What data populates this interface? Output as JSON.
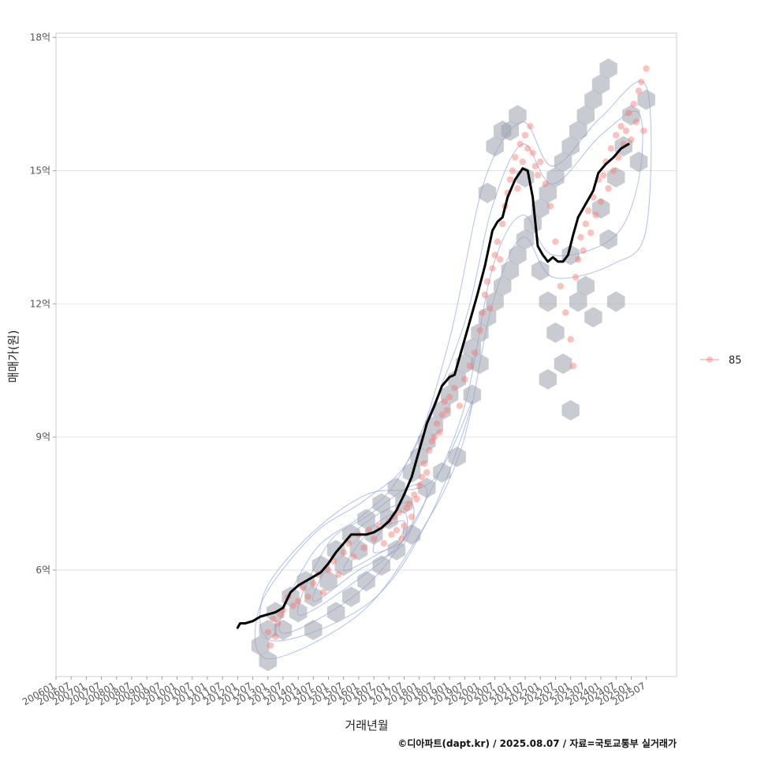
{
  "chart_data": {
    "type": "scatter",
    "xlabel": "거래년월",
    "ylabel": "매매가(원)",
    "y_unit": "억",
    "ylim": [
      3.6,
      18.1
    ],
    "yticks": [
      6,
      9,
      12,
      15,
      18
    ],
    "ytick_labels": [
      "6억",
      "9억",
      "12억",
      "15억",
      "18억"
    ],
    "x_range": [
      "2006-01",
      "2026-07"
    ],
    "x_tick_labels": [
      "200601",
      "200607",
      "200701",
      "200707",
      "200801",
      "200807",
      "200901",
      "200907",
      "201001",
      "201007",
      "201101",
      "201107",
      "201201",
      "201207",
      "201301",
      "201307",
      "201401",
      "201407",
      "201501",
      "201507",
      "201601",
      "201607",
      "201701",
      "201707",
      "201801",
      "201807",
      "201901",
      "201907",
      "202001",
      "202007",
      "202101",
      "202107",
      "202201",
      "202207",
      "202301",
      "202307",
      "202401",
      "202407",
      "202501",
      "202507"
    ],
    "grid": "horizontal",
    "legend_position": "right",
    "legend": [
      {
        "label": "85",
        "color": "#F8766D"
      }
    ],
    "series": [
      {
        "name": "85",
        "kind": "scatter",
        "color": "#F8766D",
        "points": [
          [
            "2013-01",
            4.6
          ],
          [
            "2013-02",
            4.3
          ],
          [
            "2013-03",
            4.9
          ],
          [
            "2013-04",
            4.5
          ],
          [
            "2013-05",
            4.8
          ],
          [
            "2013-06",
            5.0
          ],
          [
            "2013-07",
            5.1
          ],
          [
            "2013-09",
            5.4
          ],
          [
            "2013-11",
            5.2
          ],
          [
            "2014-01",
            5.3
          ],
          [
            "2014-03",
            5.6
          ],
          [
            "2014-05",
            5.4
          ],
          [
            "2014-07",
            5.7
          ],
          [
            "2014-09",
            5.9
          ],
          [
            "2014-11",
            5.5
          ],
          [
            "2015-01",
            6.0
          ],
          [
            "2015-03",
            6.2
          ],
          [
            "2015-05",
            5.9
          ],
          [
            "2015-07",
            6.4
          ],
          [
            "2015-09",
            6.6
          ],
          [
            "2015-11",
            6.3
          ],
          [
            "2016-01",
            6.8
          ],
          [
            "2016-03",
            6.5
          ],
          [
            "2016-05",
            6.9
          ],
          [
            "2016-07",
            6.7
          ],
          [
            "2016-09",
            7.0
          ],
          [
            "2016-11",
            6.6
          ],
          [
            "2017-01",
            7.1
          ],
          [
            "2017-02",
            6.8
          ],
          [
            "2017-03",
            7.2
          ],
          [
            "2017-04",
            6.9
          ],
          [
            "2017-05",
            7.3
          ],
          [
            "2017-06",
            6.7
          ],
          [
            "2017-07",
            7.0
          ],
          [
            "2017-08",
            7.4
          ],
          [
            "2017-09",
            7.5
          ],
          [
            "2017-10",
            7.2
          ],
          [
            "2017-11",
            7.7
          ],
          [
            "2017-12",
            7.6
          ],
          [
            "2018-01",
            7.9
          ],
          [
            "2018-02",
            8.1
          ],
          [
            "2018-03",
            8.4
          ],
          [
            "2018-04",
            8.2
          ],
          [
            "2018-05",
            8.7
          ],
          [
            "2018-06",
            8.9
          ],
          [
            "2018-07",
            9.0
          ],
          [
            "2018-08",
            9.3
          ],
          [
            "2018-09",
            9.1
          ],
          [
            "2018-10",
            9.5
          ],
          [
            "2018-11",
            9.8
          ],
          [
            "2018-12",
            9.6
          ],
          [
            "2019-01",
            9.9
          ],
          [
            "2019-03",
            10.1
          ],
          [
            "2019-05",
            9.7
          ],
          [
            "2019-07",
            10.3
          ],
          [
            "2019-09",
            10.6
          ],
          [
            "2019-11",
            10.9
          ],
          [
            "2020-01",
            11.4
          ],
          [
            "2020-02",
            11.8
          ],
          [
            "2020-03",
            12.2
          ],
          [
            "2020-04",
            12.5
          ],
          [
            "2020-05",
            11.9
          ],
          [
            "2020-06",
            12.8
          ],
          [
            "2020-07",
            13.1
          ],
          [
            "2020-08",
            13.4
          ],
          [
            "2020-09",
            13.0
          ],
          [
            "2020-10",
            13.8
          ],
          [
            "2020-11",
            14.2
          ],
          [
            "2020-12",
            14.5
          ],
          [
            "2021-01",
            14.8
          ],
          [
            "2021-02",
            15.0
          ],
          [
            "2021-03",
            15.3
          ],
          [
            "2021-04",
            14.6
          ],
          [
            "2021-05",
            15.6
          ],
          [
            "2021-06",
            15.2
          ],
          [
            "2021-07",
            15.8
          ],
          [
            "2021-08",
            15.5
          ],
          [
            "2021-09",
            16.0
          ],
          [
            "2021-10",
            15.4
          ],
          [
            "2021-11",
            15.1
          ],
          [
            "2021-12",
            14.9
          ],
          [
            "2022-01",
            15.2
          ],
          [
            "2022-03",
            14.7
          ],
          [
            "2022-05",
            14.2
          ],
          [
            "2022-07",
            13.4
          ],
          [
            "2022-09",
            12.4
          ],
          [
            "2022-11",
            11.8
          ],
          [
            "2023-01",
            11.2
          ],
          [
            "2023-02",
            10.6
          ],
          [
            "2023-03",
            12.6
          ],
          [
            "2023-04",
            13.0
          ],
          [
            "2023-05",
            13.5
          ],
          [
            "2023-06",
            13.2
          ],
          [
            "2023-07",
            13.8
          ],
          [
            "2023-08",
            14.1
          ],
          [
            "2023-09",
            13.6
          ],
          [
            "2023-10",
            14.4
          ],
          [
            "2023-11",
            14.0
          ],
          [
            "2023-12",
            14.8
          ],
          [
            "2024-01",
            14.3
          ],
          [
            "2024-02",
            14.9
          ],
          [
            "2024-03",
            15.2
          ],
          [
            "2024-04",
            14.6
          ],
          [
            "2024-05",
            15.5
          ],
          [
            "2024-06",
            15.0
          ],
          [
            "2024-07",
            15.8
          ],
          [
            "2024-08",
            15.3
          ],
          [
            "2024-09",
            16.0
          ],
          [
            "2024-10",
            15.6
          ],
          [
            "2024-11",
            15.9
          ],
          [
            "2024-12",
            16.3
          ],
          [
            "2025-01",
            15.7
          ],
          [
            "2025-02",
            16.5
          ],
          [
            "2025-03",
            16.1
          ],
          [
            "2025-04",
            16.8
          ],
          [
            "2025-05",
            17.0
          ],
          [
            "2025-06",
            15.9
          ],
          [
            "2025-07",
            17.3
          ]
        ]
      },
      {
        "name": "",
        "kind": "line",
        "color": "#000000",
        "points": [
          [
            "2012-01",
            4.7
          ],
          [
            "2012-02",
            4.8
          ],
          [
            "2012-04",
            4.8
          ],
          [
            "2012-07",
            4.85
          ],
          [
            "2012-10",
            4.95
          ],
          [
            "2013-01",
            5.0
          ],
          [
            "2013-04",
            5.05
          ],
          [
            "2013-07",
            5.15
          ],
          [
            "2013-10",
            5.5
          ],
          [
            "2014-01",
            5.65
          ],
          [
            "2014-04",
            5.75
          ],
          [
            "2014-07",
            5.85
          ],
          [
            "2014-10",
            5.95
          ],
          [
            "2015-01",
            6.15
          ],
          [
            "2015-04",
            6.4
          ],
          [
            "2015-07",
            6.6
          ],
          [
            "2015-10",
            6.8
          ],
          [
            "2016-01",
            6.8
          ],
          [
            "2016-04",
            6.8
          ],
          [
            "2016-07",
            6.85
          ],
          [
            "2016-10",
            6.95
          ],
          [
            "2017-01",
            7.1
          ],
          [
            "2017-04",
            7.35
          ],
          [
            "2017-07",
            7.7
          ],
          [
            "2017-10",
            8.1
          ],
          [
            "2017-12",
            8.5
          ],
          [
            "2018-02",
            8.9
          ],
          [
            "2018-04",
            9.3
          ],
          [
            "2018-07",
            9.7
          ],
          [
            "2018-10",
            10.15
          ],
          [
            "2019-01",
            10.35
          ],
          [
            "2019-03",
            10.4
          ],
          [
            "2019-06",
            11.0
          ],
          [
            "2019-09",
            11.6
          ],
          [
            "2019-12",
            12.2
          ],
          [
            "2020-03",
            12.85
          ],
          [
            "2020-06",
            13.65
          ],
          [
            "2020-08",
            13.85
          ],
          [
            "2020-10",
            13.95
          ],
          [
            "2020-12",
            14.4
          ],
          [
            "2021-03",
            14.8
          ],
          [
            "2021-06",
            15.05
          ],
          [
            "2021-08",
            15.0
          ],
          [
            "2021-10",
            14.4
          ],
          [
            "2021-12",
            13.3
          ],
          [
            "2022-02",
            13.1
          ],
          [
            "2022-04",
            12.95
          ],
          [
            "2022-06",
            13.05
          ],
          [
            "2022-08",
            12.95
          ],
          [
            "2022-10",
            12.95
          ],
          [
            "2022-12",
            13.1
          ],
          [
            "2023-02",
            13.55
          ],
          [
            "2023-04",
            13.95
          ],
          [
            "2023-06",
            14.15
          ],
          [
            "2023-08",
            14.35
          ],
          [
            "2023-10",
            14.55
          ],
          [
            "2023-12",
            14.95
          ],
          [
            "2024-03",
            15.15
          ],
          [
            "2024-06",
            15.3
          ],
          [
            "2024-09",
            15.5
          ],
          [
            "2024-12",
            15.6
          ]
        ]
      }
    ],
    "hex_bins": [
      [
        "2012-10",
        4.3
      ],
      [
        "2013-01",
        3.95
      ],
      [
        "2013-01",
        4.65
      ],
      [
        "2013-04",
        5.05
      ],
      [
        "2013-07",
        4.65
      ],
      [
        "2013-10",
        5.4
      ],
      [
        "2014-01",
        5.05
      ],
      [
        "2014-04",
        5.75
      ],
      [
        "2014-07",
        5.4
      ],
      [
        "2014-10",
        6.1
      ],
      [
        "2015-01",
        5.75
      ],
      [
        "2015-04",
        6.45
      ],
      [
        "2015-07",
        6.1
      ],
      [
        "2015-10",
        6.8
      ],
      [
        "2016-01",
        6.45
      ],
      [
        "2016-04",
        7.15
      ],
      [
        "2016-07",
        6.8
      ],
      [
        "2016-10",
        7.5
      ],
      [
        "2017-01",
        7.15
      ],
      [
        "2017-04",
        7.85
      ],
      [
        "2017-07",
        7.5
      ],
      [
        "2017-10",
        8.2
      ],
      [
        "2018-01",
        8.55
      ],
      [
        "2018-04",
        8.9
      ],
      [
        "2018-07",
        9.25
      ],
      [
        "2018-10",
        9.6
      ],
      [
        "2019-01",
        9.95
      ],
      [
        "2019-04",
        10.3
      ],
      [
        "2019-07",
        10.65
      ],
      [
        "2019-10",
        11.0
      ],
      [
        "2020-01",
        11.35
      ],
      [
        "2020-04",
        11.7
      ],
      [
        "2020-07",
        12.05
      ],
      [
        "2020-10",
        12.4
      ],
      [
        "2021-01",
        12.75
      ],
      [
        "2021-04",
        13.1
      ],
      [
        "2021-07",
        13.45
      ],
      [
        "2021-10",
        13.8
      ],
      [
        "2022-01",
        14.15
      ],
      [
        "2022-04",
        14.5
      ],
      [
        "2022-07",
        14.85
      ],
      [
        "2022-10",
        15.2
      ],
      [
        "2023-01",
        15.55
      ],
      [
        "2023-04",
        15.9
      ],
      [
        "2023-07",
        16.25
      ],
      [
        "2023-10",
        16.6
      ],
      [
        "2024-01",
        16.95
      ],
      [
        "2024-04",
        17.3
      ],
      [
        "2021-01",
        15.9
      ],
      [
        "2021-04",
        16.25
      ],
      [
        "2021-07",
        14.85
      ],
      [
        "2020-04",
        14.5
      ],
      [
        "2020-07",
        15.55
      ],
      [
        "2020-10",
        15.9
      ],
      [
        "2022-01",
        12.75
      ],
      [
        "2022-04",
        12.05
      ],
      [
        "2022-07",
        11.35
      ],
      [
        "2022-10",
        10.65
      ],
      [
        "2023-01",
        13.1
      ],
      [
        "2023-04",
        12.05
      ],
      [
        "2023-07",
        12.4
      ],
      [
        "2023-10",
        11.7
      ],
      [
        "2024-01",
        14.15
      ],
      [
        "2024-04",
        13.45
      ],
      [
        "2024-07",
        14.85
      ],
      [
        "2024-10",
        15.55
      ],
      [
        "2025-01",
        16.25
      ],
      [
        "2025-04",
        15.2
      ],
      [
        "2025-07",
        16.6
      ],
      [
        "2024-07",
        12.05
      ],
      [
        "2022-04",
        10.3
      ],
      [
        "2023-01",
        9.6
      ],
      [
        "2019-04",
        8.55
      ],
      [
        "2018-10",
        8.2
      ],
      [
        "2017-10",
        6.8
      ],
      [
        "2016-10",
        6.1
      ],
      [
        "2015-10",
        5.4
      ],
      [
        "2014-07",
        4.65
      ],
      [
        "2019-10",
        9.95
      ],
      [
        "2020-01",
        10.65
      ],
      [
        "2018-04",
        7.85
      ],
      [
        "2017-04",
        6.45
      ],
      [
        "2016-04",
        5.75
      ],
      [
        "2015-04",
        5.05
      ]
    ],
    "density_contours": true
  },
  "credit": "©디아파트(dapt.kr) / 2025.08.07 / 자료=국토교통부 실거래가"
}
